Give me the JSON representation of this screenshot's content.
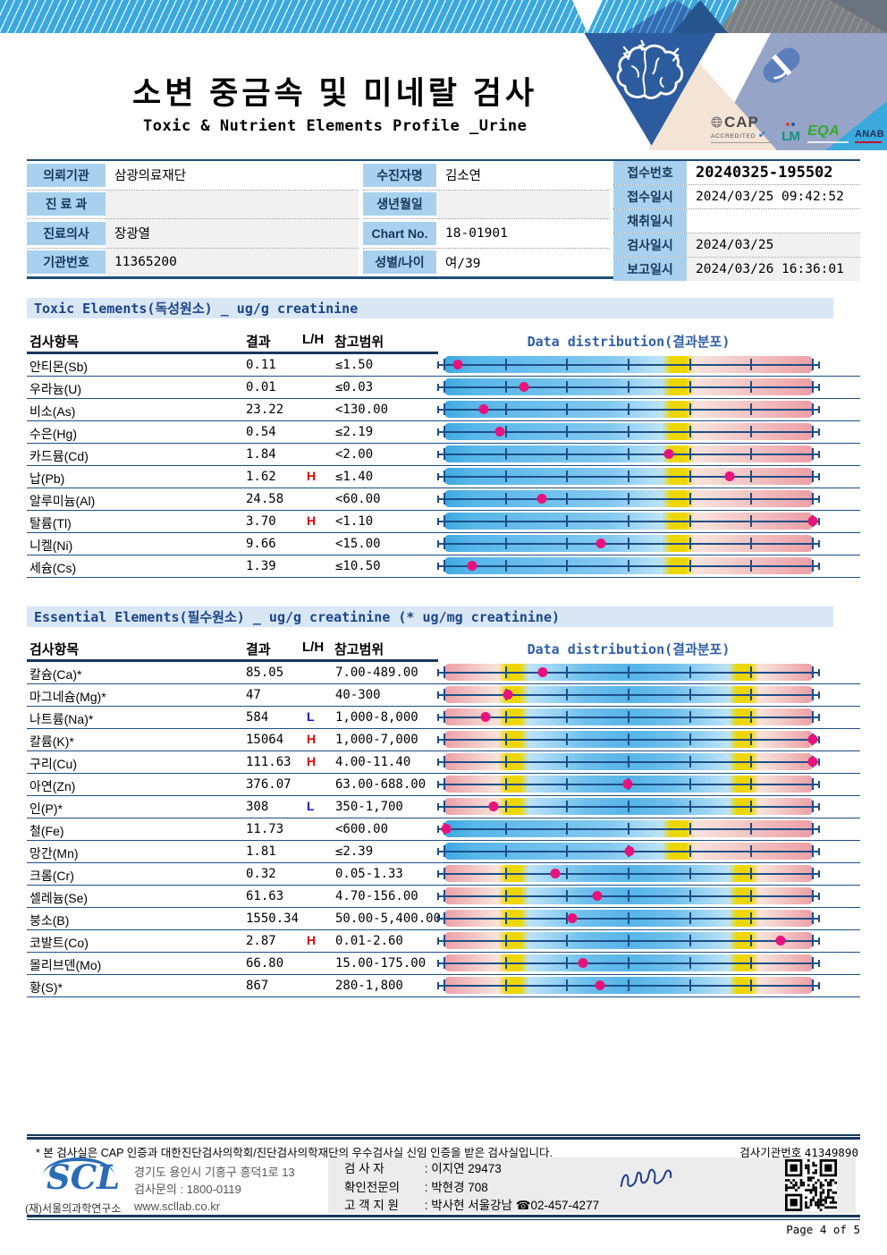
{
  "header": {
    "title": "소변 중금속 및 미네랄 검사",
    "subtitle": "Toxic & Nutrient Elements Profile _Urine",
    "logos": {
      "cap": "CAP",
      "cap_sub": "ACCREDITED",
      "lm": "LM",
      "eqa": "EQA",
      "anab": "ANAB"
    }
  },
  "patient_info": {
    "left": [
      {
        "label": "의뢰기관",
        "value": "삼광의료재단"
      },
      {
        "label": "진 료 과",
        "value": "",
        "gray": true
      },
      {
        "label": "진료의사",
        "value": "장광열",
        "gray": true
      },
      {
        "label": "기관번호",
        "value": "11365200",
        "gray": true
      }
    ],
    "middle": [
      {
        "label": "수진자명",
        "value": "김소연"
      },
      {
        "label": "생년월일",
        "value": "",
        "gray": true
      },
      {
        "label": "Chart No.",
        "value": "18-01901"
      },
      {
        "label": "성별/나이",
        "value": "여/39"
      }
    ],
    "right": [
      {
        "label": "접수번호",
        "value": "20240325-195502",
        "bold": true
      },
      {
        "label": "접수일시",
        "value": "2024/03/25  09:42:52"
      },
      {
        "label": "채취일시",
        "value": ""
      },
      {
        "label": "검사일시",
        "value": "2024/03/25",
        "gray": true
      },
      {
        "label": "보고일시",
        "value": "2024/03/26  16:36:01",
        "gray": true
      }
    ]
  },
  "columns": {
    "item": "검사항목",
    "result": "결과",
    "lh": "L/H",
    "range": "참고범위",
    "dist": "Data distribution(결과분포)"
  },
  "toxic": {
    "title": "Toxic Elements(독성원소) _ ug/g creatinine",
    "rows": [
      {
        "name": "안티몬(Sb)",
        "result": "0.11",
        "lh": "",
        "range": "≤1.50",
        "bar": "high",
        "pos": 3.6
      },
      {
        "name": "우라늄(U)",
        "result": "0.01",
        "lh": "",
        "range": "≤0.03",
        "bar": "high",
        "pos": 21.5
      },
      {
        "name": "비소(As)",
        "result": "23.22",
        "lh": "",
        "range": "<130.00",
        "bar": "high",
        "pos": 10.6
      },
      {
        "name": "수은(Hg)",
        "result": "0.54",
        "lh": "",
        "range": "≤2.19",
        "bar": "high",
        "pos": 15.0
      },
      {
        "name": "카드뮴(Cd)",
        "result": "1.84",
        "lh": "",
        "range": "<2.00",
        "bar": "high",
        "pos": 61.0
      },
      {
        "name": "납(Pb)",
        "result": "1.62",
        "lh": "H",
        "range": "≤1.40",
        "bar": "high",
        "pos": 77.5
      },
      {
        "name": "알루미늄(Al)",
        "result": "24.58",
        "lh": "",
        "range": "<60.00",
        "bar": "high",
        "pos": 26.5
      },
      {
        "name": "탈륨(Tl)",
        "result": "3.70",
        "lh": "H",
        "range": "<1.10",
        "bar": "high",
        "pos": 100
      },
      {
        "name": "니켈(Ni)",
        "result": "9.66",
        "lh": "",
        "range": "<15.00",
        "bar": "high",
        "pos": 42.5
      },
      {
        "name": "세슘(Cs)",
        "result": "1.39",
        "lh": "",
        "range": "≤10.50",
        "bar": "high",
        "pos": 7.5
      }
    ]
  },
  "essential": {
    "title": "Essential Elements(필수원소) _ ug/g creatinine (* ug/mg creatinine)",
    "rows": [
      {
        "name": "칼슘(Ca)*",
        "result": "85.05",
        "lh": "",
        "range": "7.00-489.00",
        "bar": "range",
        "pos": 26.6
      },
      {
        "name": "마그네슘(Mg)*",
        "result": "47",
        "lh": "",
        "range": "40-300",
        "bar": "range",
        "pos": 17.3
      },
      {
        "name": "나트륨(Na)*",
        "result": "584",
        "lh": "L",
        "range": "1,000-8,000",
        "bar": "range",
        "pos": 11.2
      },
      {
        "name": "칼륨(K)*",
        "result": "15064",
        "lh": "H",
        "range": "1,000-7,000",
        "bar": "range",
        "pos": 100
      },
      {
        "name": "구리(Cu)",
        "result": "111.63",
        "lh": "H",
        "range": "4.00-11.40",
        "bar": "range",
        "pos": 100
      },
      {
        "name": "아연(Zn)",
        "result": "376.07",
        "lh": "",
        "range": "63.00-688.00",
        "bar": "range",
        "pos": 49.8
      },
      {
        "name": "인(P)*",
        "result": "308",
        "lh": "L",
        "range": "350-1,700",
        "bar": "range",
        "pos": 13.4
      },
      {
        "name": "철(Fe)",
        "result": "11.73",
        "lh": "",
        "range": "<600.00",
        "bar": "high",
        "pos": 0.5
      },
      {
        "name": "망간(Mn)",
        "result": "1.81",
        "lh": "",
        "range": "≤2.39",
        "bar": "high",
        "pos": 50.3
      },
      {
        "name": "크롬(Cr)",
        "result": "0.32",
        "lh": "",
        "range": "0.05-1.33",
        "bar": "range",
        "pos": 30.0
      },
      {
        "name": "셀레늄(Se)",
        "result": "61.63",
        "lh": "",
        "range": "4.70-156.00",
        "bar": "range",
        "pos": 41.4
      },
      {
        "name": "붕소(B)",
        "result": "1550.34",
        "lh": "",
        "range": "50.00-5,400.00",
        "bar": "range",
        "pos": 34.7
      },
      {
        "name": "코발트(Co)",
        "result": "2.87",
        "lh": "H",
        "range": "0.01-2.60",
        "bar": "range",
        "pos": 91.2
      },
      {
        "name": "몰리브덴(Mo)",
        "result": "66.80",
        "lh": "",
        "range": "15.00-175.00",
        "bar": "range",
        "pos": 37.7
      },
      {
        "name": "황(S)*",
        "result": "867",
        "lh": "",
        "range": "280-1,800",
        "bar": "range",
        "pos": 42.2
      }
    ]
  },
  "footer": {
    "note": "* 본 검사실은 CAP 인증과 대한진단검사의학회/진단검사의학재단의 우수검사실 신임 인증을 받은 검사실입니다.",
    "lab_no_label": "검사기관번호",
    "lab_no": "41349890",
    "scl": {
      "logo": "SCL",
      "org": "(재)서울의과학연구소",
      "addr1": "경기도 용인시 기흥구 흥덕1로 13",
      "addr2": "검사문의 : 1800-0119",
      "addr3": "www.scllab.co.kr"
    },
    "staff": [
      {
        "label": "검  사  자",
        "value": "이지연 29473"
      },
      {
        "label": "확인전문의",
        "value": "박현경 708"
      },
      {
        "label": "고 객 지 원",
        "value": "박사현 서울강남 ☎02-457-4277"
      }
    ],
    "page": "Page 4 of 5"
  },
  "colors": {
    "navy": "#17375E",
    "banner_blue": "#3BA9DD",
    "section_band": "#D9E7F5",
    "label_blue": "#A9D1EE",
    "bar_blue": "#55B4E8",
    "bar_pink": "#ED9FA6",
    "bar_yellow": "#EED600",
    "dot_magenta": "#E8127D",
    "high_red": "#E00000",
    "low_blue": "#1418DC"
  }
}
